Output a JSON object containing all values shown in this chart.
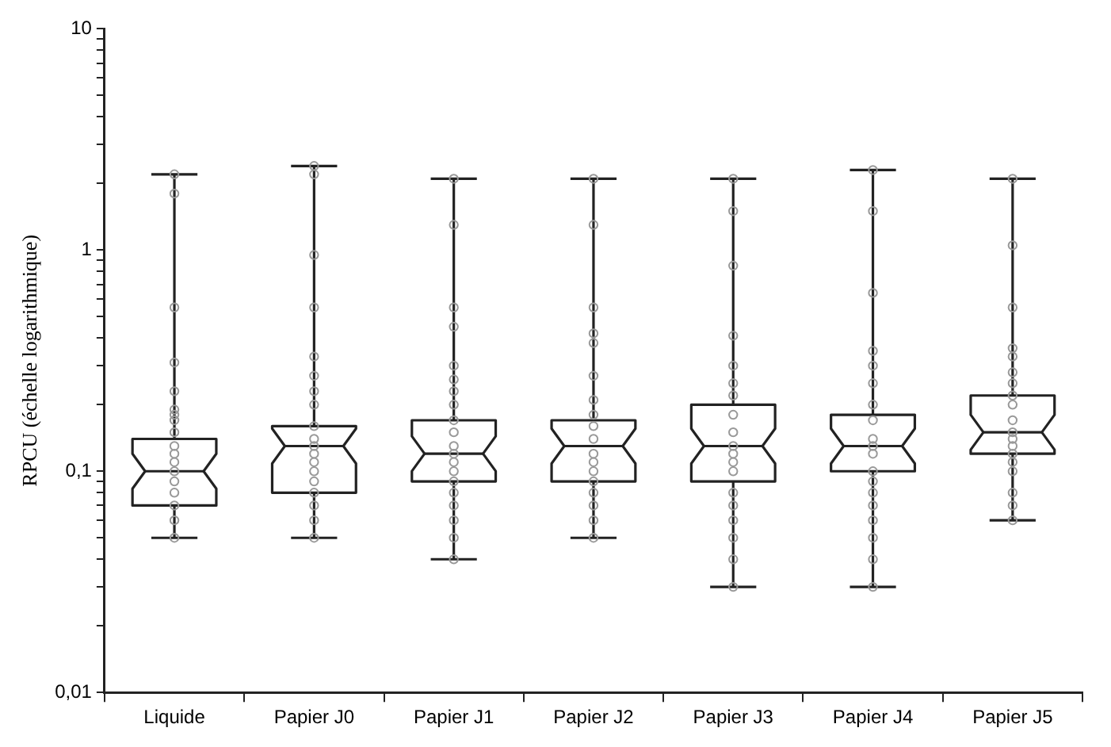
{
  "chart_data": {
    "type": "box",
    "ylabel": "RPCU (échelle logarithmique)",
    "log": "y",
    "categories": [
      "Liquide",
      "Papier J0",
      "Papier J1",
      "Papier J2",
      "Papier J3",
      "Papier J4",
      "Papier J5"
    ],
    "ylim": [
      0.01,
      10
    ],
    "yticks": [
      {
        "value": 0.01,
        "label": "0,01"
      },
      {
        "value": 0.02,
        "label": null
      },
      {
        "value": 0.03,
        "label": null
      },
      {
        "value": 0.04,
        "label": null
      },
      {
        "value": 0.05,
        "label": null
      },
      {
        "value": 0.06,
        "label": null
      },
      {
        "value": 0.07,
        "label": null
      },
      {
        "value": 0.08,
        "label": null
      },
      {
        "value": 0.09,
        "label": null
      },
      {
        "value": 0.1,
        "label": "0,1"
      },
      {
        "value": 0.2,
        "label": null
      },
      {
        "value": 0.3,
        "label": null
      },
      {
        "value": 0.4,
        "label": null
      },
      {
        "value": 0.5,
        "label": null
      },
      {
        "value": 0.6,
        "label": null
      },
      {
        "value": 0.7,
        "label": null
      },
      {
        "value": 0.8,
        "label": null
      },
      {
        "value": 0.9,
        "label": null
      },
      1,
      {
        "value": 2,
        "label": null
      },
      {
        "value": 3,
        "label": null
      },
      {
        "value": 4,
        "label": null
      },
      {
        "value": 5,
        "label": null
      },
      {
        "value": 6,
        "label": null
      },
      {
        "value": 7,
        "label": null
      },
      {
        "value": 8,
        "label": null
      },
      {
        "value": 9,
        "label": null
      },
      10
    ],
    "boxes": [
      {
        "low": 0.05,
        "q1": 0.07,
        "median": 0.1,
        "q3": 0.14,
        "high": 2.2
      },
      {
        "low": 0.05,
        "q1": 0.08,
        "median": 0.13,
        "q3": 0.16,
        "high": 2.4
      },
      {
        "low": 0.04,
        "q1": 0.09,
        "median": 0.12,
        "q3": 0.17,
        "high": 2.1
      },
      {
        "low": 0.05,
        "q1": 0.09,
        "median": 0.13,
        "q3": 0.17,
        "high": 2.1
      },
      {
        "low": 0.03,
        "q1": 0.09,
        "median": 0.13,
        "q3": 0.2,
        "high": 2.1
      },
      {
        "low": 0.03,
        "q1": 0.1,
        "median": 0.13,
        "q3": 0.18,
        "high": 2.3
      },
      {
        "low": 0.06,
        "q1": 0.12,
        "median": 0.15,
        "q3": 0.22,
        "high": 2.1
      }
    ],
    "series": [
      {
        "type": "scatter",
        "marker": "circle",
        "color": "#999999",
        "x": [
          "Liquide",
          "Liquide",
          "Liquide",
          "Liquide",
          "Liquide",
          "Liquide",
          "Liquide",
          "Liquide",
          "Liquide",
          "Liquide",
          "Liquide",
          "Liquide",
          "Liquide",
          "Liquide",
          "Liquide",
          "Liquide",
          "Liquide",
          "Liquide",
          "Papier J0",
          "Papier J0",
          "Papier J0",
          "Papier J0",
          "Papier J0",
          "Papier J0",
          "Papier J0",
          "Papier J0",
          "Papier J0",
          "Papier J0",
          "Papier J0",
          "Papier J0",
          "Papier J0",
          "Papier J0",
          "Papier J0",
          "Papier J0",
          "Papier J0",
          "Papier J0",
          "Papier J0",
          "Papier J1",
          "Papier J1",
          "Papier J1",
          "Papier J1",
          "Papier J1",
          "Papier J1",
          "Papier J1",
          "Papier J1",
          "Papier J1",
          "Papier J1",
          "Papier J1",
          "Papier J1",
          "Papier J1",
          "Papier J1",
          "Papier J1",
          "Papier J1",
          "Papier J1",
          "Papier J1",
          "Papier J1",
          "Papier J1",
          "Papier J2",
          "Papier J2",
          "Papier J2",
          "Papier J2",
          "Papier J2",
          "Papier J2",
          "Papier J2",
          "Papier J2",
          "Papier J2",
          "Papier J2",
          "Papier J2",
          "Papier J2",
          "Papier J2",
          "Papier J2",
          "Papier J2",
          "Papier J2",
          "Papier J2",
          "Papier J2",
          "Papier J3",
          "Papier J3",
          "Papier J3",
          "Papier J3",
          "Papier J3",
          "Papier J3",
          "Papier J3",
          "Papier J3",
          "Papier J3",
          "Papier J3",
          "Papier J3",
          "Papier J3",
          "Papier J3",
          "Papier J3",
          "Papier J3",
          "Papier J3",
          "Papier J3",
          "Papier J3",
          "Papier J3",
          "Papier J4",
          "Papier J4",
          "Papier J4",
          "Papier J4",
          "Papier J4",
          "Papier J4",
          "Papier J4",
          "Papier J4",
          "Papier J4",
          "Papier J4",
          "Papier J4",
          "Papier J4",
          "Papier J4",
          "Papier J4",
          "Papier J4",
          "Papier J4",
          "Papier J4",
          "Papier J4",
          "Papier J4",
          "Papier J5",
          "Papier J5",
          "Papier J5",
          "Papier J5",
          "Papier J5",
          "Papier J5",
          "Papier J5",
          "Papier J5",
          "Papier J5",
          "Papier J5",
          "Papier J5",
          "Papier J5",
          "Papier J5",
          "Papier J5",
          "Papier J5",
          "Papier J5",
          "Papier J5",
          "Papier J5",
          "Papier J5"
        ],
        "values": [
          0.05,
          0.06,
          0.07,
          0.08,
          0.09,
          0.1,
          0.11,
          0.12,
          0.13,
          0.15,
          0.17,
          0.18,
          0.19,
          0.23,
          0.31,
          0.55,
          1.8,
          2.2,
          0.05,
          0.06,
          0.07,
          0.08,
          0.09,
          0.1,
          0.11,
          0.12,
          0.13,
          0.14,
          0.16,
          0.2,
          0.23,
          0.27,
          0.33,
          0.55,
          0.95,
          2.2,
          2.4,
          0.04,
          0.05,
          0.06,
          0.07,
          0.08,
          0.09,
          0.1,
          0.11,
          0.12,
          0.13,
          0.15,
          0.17,
          0.2,
          0.23,
          0.26,
          0.3,
          0.45,
          0.55,
          1.3,
          2.1,
          0.05,
          0.06,
          0.07,
          0.08,
          0.09,
          0.1,
          0.11,
          0.12,
          0.14,
          0.16,
          0.18,
          0.21,
          0.27,
          0.38,
          0.42,
          0.55,
          1.3,
          2.1,
          0.03,
          0.04,
          0.05,
          0.06,
          0.07,
          0.08,
          0.1,
          0.11,
          0.12,
          0.13,
          0.15,
          0.18,
          0.22,
          0.25,
          0.3,
          0.41,
          0.85,
          1.5,
          2.1,
          0.03,
          0.04,
          0.05,
          0.06,
          0.07,
          0.08,
          0.09,
          0.1,
          0.12,
          0.13,
          0.14,
          0.17,
          0.2,
          0.25,
          0.3,
          0.35,
          0.64,
          1.5,
          2.3,
          0.06,
          0.07,
          0.08,
          0.1,
          0.11,
          0.12,
          0.13,
          0.14,
          0.15,
          0.17,
          0.2,
          0.22,
          0.25,
          0.28,
          0.33,
          0.36,
          0.55,
          1.05,
          2.1
        ]
      }
    ]
  }
}
